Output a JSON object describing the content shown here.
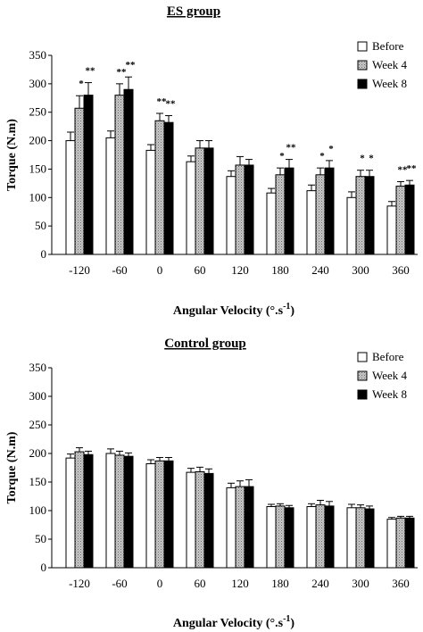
{
  "chart_data": [
    {
      "type": "bar",
      "title": "ES group",
      "xlabel": "Angular Velocity (°.s",
      "xlabel_sup": "-1",
      "xlabel_end": ")",
      "ylabel": "Torque (N.m)",
      "ylim": [
        0,
        350
      ],
      "yticks": [
        0,
        50,
        100,
        150,
        200,
        250,
        300,
        350
      ],
      "grid": false,
      "legend_position": "top-right",
      "categories": [
        "-120",
        "-60",
        "0",
        "60",
        "120",
        "180",
        "240",
        "300",
        "360"
      ],
      "series": [
        {
          "name": "Before",
          "pattern": "white",
          "values": [
            200,
            205,
            183,
            163,
            137,
            108,
            112,
            100,
            85
          ],
          "errors": [
            15,
            12,
            10,
            10,
            10,
            8,
            10,
            10,
            8
          ],
          "significance": [
            "",
            "",
            "",
            "",
            "",
            "",
            "",
            "",
            ""
          ]
        },
        {
          "name": "Week 4",
          "pattern": "gray",
          "values": [
            257,
            280,
            235,
            187,
            157,
            140,
            140,
            137,
            120
          ],
          "errors": [
            22,
            20,
            13,
            13,
            15,
            12,
            12,
            11,
            8
          ],
          "significance": [
            "*",
            "**",
            "**",
            "",
            "",
            "*",
            "*",
            "*",
            "**"
          ]
        },
        {
          "name": "Week 8",
          "pattern": "black",
          "values": [
            280,
            290,
            232,
            187,
            157,
            152,
            152,
            137,
            122
          ],
          "errors": [
            22,
            22,
            12,
            13,
            10,
            15,
            13,
            11,
            8
          ],
          "significance": [
            "**",
            "**",
            "**",
            "",
            "",
            "**",
            "*",
            "*",
            "**"
          ]
        }
      ]
    },
    {
      "type": "bar",
      "title": "Control group",
      "xlabel": "Angular Velocity (°.s",
      "xlabel_sup": "-1",
      "xlabel_end": ")",
      "ylabel": "Torque (N.m)",
      "ylim": [
        0,
        350
      ],
      "yticks": [
        0,
        50,
        100,
        150,
        200,
        250,
        300,
        350
      ],
      "grid": false,
      "legend_position": "top-right",
      "categories": [
        "-120",
        "-60",
        "0",
        "60",
        "120",
        "180",
        "240",
        "300",
        "360"
      ],
      "series": [
        {
          "name": "Before",
          "pattern": "white",
          "values": [
            192,
            200,
            182,
            167,
            140,
            107,
            107,
            105,
            85
          ],
          "errors": [
            7,
            8,
            7,
            7,
            8,
            4,
            5,
            6,
            3
          ],
          "significance": [
            "",
            "",
            "",
            "",
            "",
            "",
            "",
            "",
            ""
          ]
        },
        {
          "name": "Week 4",
          "pattern": "gray",
          "values": [
            203,
            197,
            187,
            168,
            142,
            108,
            110,
            105,
            87
          ],
          "errors": [
            7,
            7,
            6,
            8,
            10,
            4,
            8,
            5,
            3
          ],
          "significance": [
            "",
            "",
            "",
            "",
            "",
            "",
            "",
            "",
            ""
          ]
        },
        {
          "name": "Week 8",
          "pattern": "black",
          "values": [
            198,
            195,
            187,
            165,
            142,
            105,
            108,
            103,
            87
          ],
          "errors": [
            6,
            6,
            6,
            8,
            12,
            4,
            8,
            5,
            3
          ],
          "significance": [
            "",
            "",
            "",
            "",
            "",
            "",
            "",
            "",
            ""
          ]
        }
      ]
    }
  ]
}
